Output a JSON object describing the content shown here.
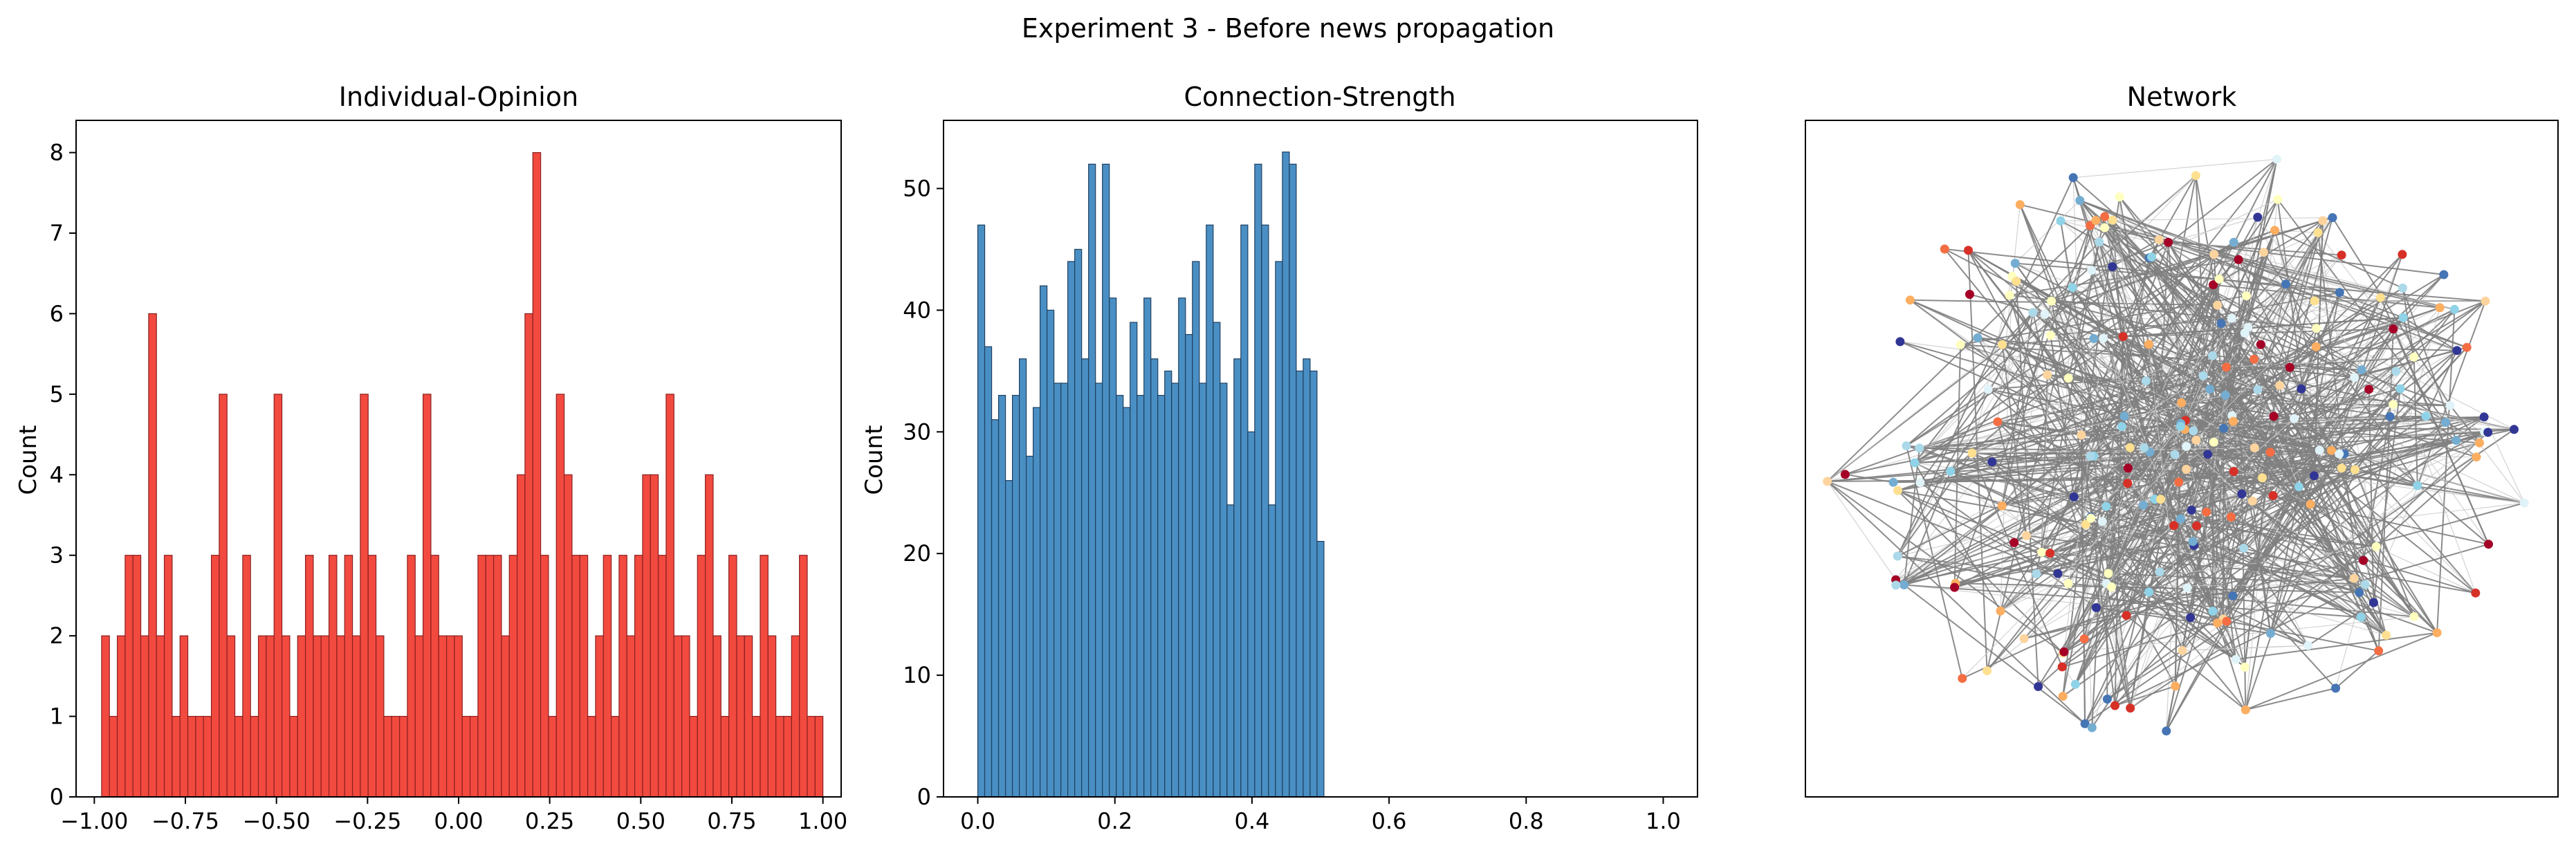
{
  "figure": {
    "suptitle": "Experiment 3 - Before news propagation"
  },
  "chart_data": [
    {
      "type": "bar",
      "title": "Individual-Opinion",
      "xlabel": "",
      "ylabel": "Count",
      "xlim": [
        -1.05,
        1.05
      ],
      "ylim": [
        0,
        8.4
      ],
      "xticks": [
        -1.0,
        -0.75,
        -0.5,
        -0.25,
        0.0,
        0.25,
        0.5,
        0.75,
        1.0
      ],
      "xtick_labels": [
        "−1.00",
        "−0.75",
        "−0.50",
        "−0.25",
        "0.00",
        "0.25",
        "0.50",
        "0.75",
        "1.00"
      ],
      "yticks": [
        0,
        1,
        2,
        3,
        4,
        5,
        6,
        7,
        8
      ],
      "ytick_labels": [
        "0",
        "1",
        "2",
        "3",
        "4",
        "5",
        "6",
        "7",
        "8"
      ],
      "bin_start": -0.98,
      "bin_end": 1.0,
      "values": [
        2,
        1,
        2,
        3,
        3,
        2,
        6,
        2,
        3,
        1,
        2,
        1,
        1,
        1,
        3,
        5,
        2,
        1,
        3,
        1,
        2,
        2,
        5,
        2,
        1,
        2,
        3,
        2,
        2,
        3,
        2,
        3,
        2,
        5,
        3,
        2,
        1,
        1,
        1,
        3,
        2,
        5,
        3,
        2,
        2,
        2,
        1,
        1,
        3,
        3,
        3,
        2,
        3,
        4,
        6,
        8,
        3,
        1,
        5,
        4,
        3,
        3,
        1,
        2,
        3,
        1,
        3,
        2,
        3,
        4,
        4,
        3,
        5,
        2,
        2,
        1,
        3,
        4,
        2,
        1,
        3,
        2,
        2,
        1,
        3,
        2,
        1,
        1,
        2,
        3,
        1,
        1
      ],
      "color": "#f24a3f",
      "edge_color": "#8b2020"
    },
    {
      "type": "bar",
      "title": "Connection-Strength",
      "xlabel": "",
      "ylabel": "Count",
      "xlim": [
        -0.05,
        1.05
      ],
      "ylim": [
        0,
        55.6
      ],
      "xticks": [
        0.0,
        0.2,
        0.4,
        0.6,
        0.8,
        1.0
      ],
      "xtick_labels": [
        "0.0",
        "0.2",
        "0.4",
        "0.6",
        "0.8",
        "1.0"
      ],
      "yticks": [
        0,
        10,
        20,
        30,
        40,
        50
      ],
      "ytick_labels": [
        "0",
        "10",
        "20",
        "30",
        "40",
        "50"
      ],
      "bin_start": 0.0,
      "bin_end": 0.505,
      "values": [
        47,
        37,
        31,
        33,
        26,
        33,
        36,
        28,
        32,
        42,
        40,
        34,
        34,
        44,
        45,
        36,
        52,
        34,
        52,
        41,
        33,
        32,
        39,
        33,
        41,
        36,
        33,
        35,
        34,
        41,
        38,
        44,
        34,
        47,
        39,
        34,
        24,
        36,
        47,
        30,
        52,
        47,
        24,
        44,
        53,
        52,
        35,
        36,
        35,
        21
      ],
      "color": "#4a8fc4",
      "edge_color": "#1f3f5f"
    }
  ],
  "network": {
    "title": "Network",
    "edge_color": "#808080",
    "light_edge_color": "#c8c8c8",
    "palette": [
      "#a50026",
      "#d73027",
      "#f46d43",
      "#fdae61",
      "#fee090",
      "#ffffbf",
      "#e0f3f8",
      "#abd9e9",
      "#74add1",
      "#4575b4",
      "#313695",
      "#8fd3e8",
      "#fdd49e"
    ]
  }
}
